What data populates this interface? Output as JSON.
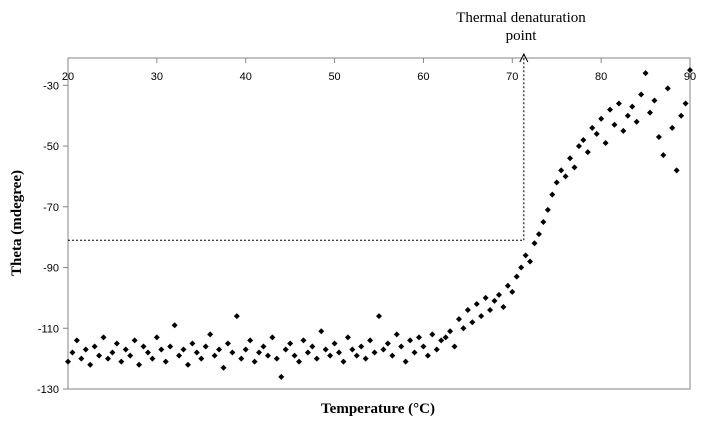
{
  "chart_data": {
    "type": "scatter",
    "title": "",
    "xlabel": "Temperature (°C)",
    "ylabel": "Theta (mdegree)",
    "xlim": [
      20,
      90
    ],
    "ylim": [
      -130,
      -21
    ],
    "xticks": [
      20,
      30,
      40,
      50,
      60,
      70,
      80,
      90
    ],
    "yticks": [
      -30,
      -50,
      -70,
      -90,
      -110,
      -130
    ],
    "grid": false,
    "legend": "none",
    "annotation": {
      "text_line1": "Thermal denaturation",
      "text_line2": "point",
      "x": 71.3,
      "y": -81
    },
    "marker_color": "#000000",
    "points": [
      [
        20,
        -121
      ],
      [
        20.5,
        -118
      ],
      [
        21,
        -114
      ],
      [
        21.5,
        -120
      ],
      [
        22,
        -117
      ],
      [
        22.5,
        -122
      ],
      [
        23,
        -116
      ],
      [
        23.5,
        -119
      ],
      [
        24,
        -113
      ],
      [
        24.5,
        -120
      ],
      [
        25,
        -118
      ],
      [
        25.5,
        -115
      ],
      [
        26,
        -121
      ],
      [
        26.5,
        -117
      ],
      [
        27,
        -119
      ],
      [
        27.5,
        -114
      ],
      [
        28,
        -122
      ],
      [
        28.5,
        -116
      ],
      [
        29,
        -118
      ],
      [
        29.5,
        -120
      ],
      [
        30,
        -113
      ],
      [
        30.5,
        -117
      ],
      [
        31,
        -121
      ],
      [
        31.5,
        -116
      ],
      [
        32,
        -109
      ],
      [
        32.5,
        -119
      ],
      [
        33,
        -117
      ],
      [
        33.5,
        -122
      ],
      [
        34,
        -115
      ],
      [
        34.5,
        -118
      ],
      [
        35,
        -120
      ],
      [
        35.5,
        -116
      ],
      [
        36,
        -112
      ],
      [
        36.5,
        -119
      ],
      [
        37,
        -117
      ],
      [
        37.5,
        -123
      ],
      [
        38,
        -115
      ],
      [
        38.5,
        -118
      ],
      [
        39,
        -106
      ],
      [
        39.5,
        -120
      ],
      [
        40,
        -117
      ],
      [
        40.5,
        -114
      ],
      [
        41,
        -121
      ],
      [
        41.5,
        -118
      ],
      [
        42,
        -116
      ],
      [
        42.5,
        -119
      ],
      [
        43,
        -113
      ],
      [
        43.5,
        -120
      ],
      [
        44,
        -126
      ],
      [
        44.5,
        -117
      ],
      [
        45,
        -115
      ],
      [
        45.5,
        -119
      ],
      [
        46,
        -121
      ],
      [
        46.5,
        -114
      ],
      [
        47,
        -118
      ],
      [
        47.5,
        -116
      ],
      [
        48,
        -120
      ],
      [
        48.5,
        -111
      ],
      [
        49,
        -117
      ],
      [
        49.5,
        -119
      ],
      [
        50,
        -115
      ],
      [
        50.5,
        -118
      ],
      [
        51,
        -121
      ],
      [
        51.5,
        -113
      ],
      [
        52,
        -117
      ],
      [
        52.5,
        -119
      ],
      [
        53,
        -116
      ],
      [
        53.5,
        -120
      ],
      [
        54,
        -114
      ],
      [
        54.5,
        -118
      ],
      [
        55,
        -106
      ],
      [
        55.5,
        -117
      ],
      [
        56,
        -115
      ],
      [
        56.5,
        -119
      ],
      [
        57,
        -112
      ],
      [
        57.5,
        -116
      ],
      [
        58,
        -121
      ],
      [
        58.5,
        -114
      ],
      [
        59,
        -118
      ],
      [
        59.5,
        -113
      ],
      [
        60,
        -116
      ],
      [
        60.5,
        -119
      ],
      [
        61,
        -112
      ],
      [
        61.5,
        -117
      ],
      [
        62,
        -114
      ],
      [
        62.5,
        -113
      ],
      [
        63,
        -111
      ],
      [
        63.5,
        -116
      ],
      [
        64,
        -107
      ],
      [
        64.5,
        -110
      ],
      [
        65,
        -104
      ],
      [
        65.5,
        -108
      ],
      [
        66,
        -102
      ],
      [
        66.5,
        -106
      ],
      [
        67,
        -100
      ],
      [
        67.5,
        -104
      ],
      [
        68,
        -101
      ],
      [
        68.5,
        -99
      ],
      [
        69,
        -103
      ],
      [
        69.5,
        -96
      ],
      [
        70,
        -98
      ],
      [
        70.5,
        -93
      ],
      [
        71,
        -90
      ],
      [
        71.5,
        -86
      ],
      [
        72,
        -88
      ],
      [
        72.5,
        -82
      ],
      [
        73,
        -79
      ],
      [
        73.5,
        -75
      ],
      [
        74,
        -71
      ],
      [
        74.5,
        -66
      ],
      [
        75,
        -62
      ],
      [
        75.5,
        -58
      ],
      [
        76,
        -60
      ],
      [
        76.5,
        -54
      ],
      [
        77,
        -57
      ],
      [
        77.5,
        -50
      ],
      [
        78,
        -48
      ],
      [
        78.5,
        -52
      ],
      [
        79,
        -44
      ],
      [
        79.5,
        -46
      ],
      [
        80,
        -41
      ],
      [
        80.5,
        -49
      ],
      [
        81,
        -38
      ],
      [
        81.5,
        -43
      ],
      [
        82,
        -36
      ],
      [
        82.5,
        -45
      ],
      [
        83,
        -40
      ],
      [
        83.5,
        -37
      ],
      [
        84,
        -42
      ],
      [
        84.5,
        -33
      ],
      [
        85,
        -26
      ],
      [
        85.5,
        -39
      ],
      [
        86,
        -35
      ],
      [
        86.5,
        -47
      ],
      [
        87,
        -53
      ],
      [
        87.5,
        -31
      ],
      [
        88,
        -44
      ],
      [
        88.5,
        -58
      ],
      [
        89,
        -40
      ],
      [
        89.5,
        -36
      ],
      [
        90,
        -25
      ]
    ]
  }
}
